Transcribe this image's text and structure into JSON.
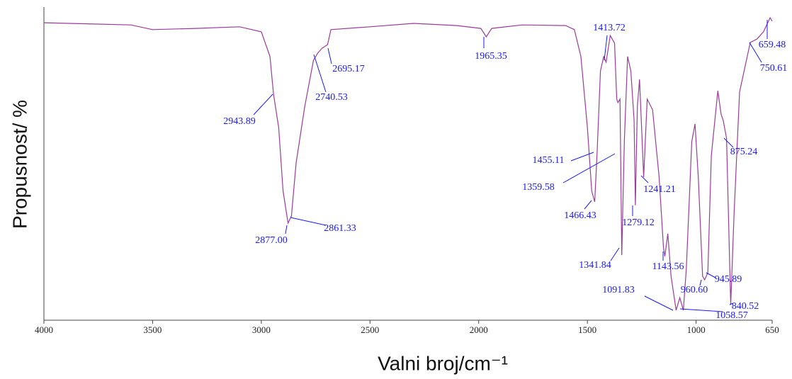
{
  "chart_data": {
    "type": "line",
    "ylabel": "Propusnost/ %",
    "xlabel": "Valni broj/cm⁻¹",
    "xlim": [
      4000,
      650
    ],
    "xticks": [
      4000,
      3500,
      3000,
      2500,
      2000,
      1500,
      1000,
      650
    ],
    "ylim": [
      0,
      100
    ],
    "color": "#9b3c9b",
    "label_color": "#1a1aff",
    "x": [
      4000,
      3600,
      3500,
      3300,
      3100,
      3000,
      2960,
      2943.89,
      2920,
      2900,
      2877,
      2861.33,
      2840,
      2800,
      2760,
      2740.53,
      2720,
      2695.17,
      2680,
      2500,
      2300,
      2100,
      1990,
      1965.35,
      1940,
      1800,
      1600,
      1560,
      1530,
      1500,
      1480,
      1466.43,
      1455.11,
      1440,
      1425,
      1413.72,
      1395,
      1375,
      1365,
      1359.58,
      1350,
      1341.84,
      1330,
      1315,
      1300,
      1285,
      1279.12,
      1270,
      1260,
      1241.21,
      1225,
      1200,
      1170,
      1150,
      1143.56,
      1130,
      1115,
      1091.83,
      1075,
      1058.57,
      1045,
      1020,
      1005,
      990,
      970,
      960.6,
      945.89,
      930,
      900,
      885,
      875.24,
      860,
      845,
      840.52,
      825,
      800,
      750.61,
      720,
      690,
      659.48,
      650
    ],
    "y": [
      95.0,
      94.3,
      92.8,
      93.2,
      93.7,
      92.1,
      84.2,
      72.2,
      61.5,
      41.2,
      31.0,
      33.3,
      50.2,
      68.3,
      83.0,
      85.3,
      86.9,
      88.0,
      92.8,
      93.7,
      94.8,
      94.1,
      93.2,
      90.5,
      93.2,
      94.3,
      94.1,
      92.8,
      84.2,
      61.5,
      41.2,
      37.8,
      53.6,
      79.6,
      84.2,
      82.4,
      90.9,
      88.5,
      70.6,
      69.5,
      70.6,
      20.8,
      57.0,
      84.2,
      79.6,
      63.8,
      36.7,
      68.3,
      76.9,
      45.7,
      70.6,
      67.2,
      45.7,
      23.1,
      20.4,
      27.6,
      14.0,
      3.2,
      7.2,
      3.2,
      16.3,
      57.0,
      62.7,
      45.7,
      14.0,
      12.9,
      15.2,
      52.5,
      73.3,
      65.8,
      63.8,
      58.1,
      16.3,
      5.0,
      34.4,
      72.9,
      88.7,
      89.8,
      92.1,
      96.6,
      95.5
    ],
    "annotations": [
      "2943.89",
      "2740.53",
      "2695.17",
      "1965.35",
      "2877.00",
      "2861.33",
      "1413.72",
      "1455.11",
      "1359.58",
      "1466.43",
      "1279.12",
      "1241.21",
      "1341.84",
      "1143.56",
      "1091.83",
      "960.60",
      "945.89",
      "1058.57",
      "840.52",
      "875.24",
      "659.48",
      "750.61"
    ]
  }
}
